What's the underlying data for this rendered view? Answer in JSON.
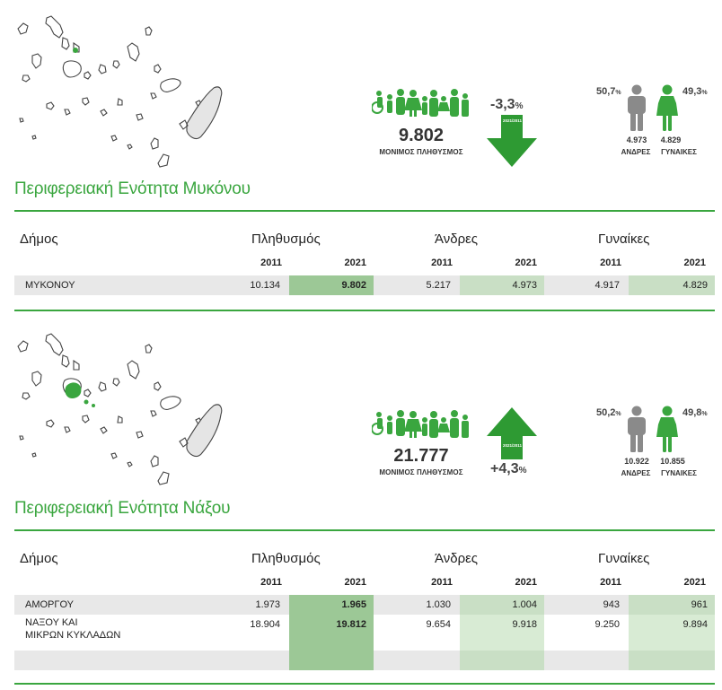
{
  "sections": [
    {
      "title": "Περιφερειακή Ενότητα Μυκόνου",
      "population": "9.802",
      "population_caption": "ΜΟΝΙΜΟΣ ΠΛΗΘΥΣΜΟΣ",
      "change": "-3,3",
      "change_unit": "%",
      "change_period": "2021/2011",
      "change_direction": "down",
      "men_pct": "50,7",
      "women_pct": "49,3",
      "pct_unit": "%",
      "men_count": "4.973",
      "women_count": "4.829",
      "men_label": "ΑΝΔΡΕΣ",
      "women_label": "ΓΥΝΑΙΚΕΣ",
      "headers": {
        "municipality": "Δήμος",
        "population": "Πληθυσμός",
        "men": "Άνδρες",
        "women": "Γυναίκες"
      },
      "years": [
        "2011",
        "2021"
      ],
      "rows": [
        {
          "name": "ΜΥΚΟΝΟΥ",
          "pop2011": "10.134",
          "pop2021": "9.802",
          "men2011": "5.217",
          "men2021": "4.973",
          "women2011": "4.917",
          "women2021": "4.829"
        }
      ]
    },
    {
      "title": "Περιφερειακή Ενότητα Νάξου",
      "population": "21.777",
      "population_caption": "ΜΟΝΙΜΟΣ ΠΛΗΘΥΣΜΟΣ",
      "change": "+4,3",
      "change_unit": "%",
      "change_period": "2021/2011",
      "change_direction": "up",
      "men_pct": "50,2",
      "women_pct": "49,8",
      "pct_unit": "%",
      "men_count": "10.922",
      "women_count": "10.855",
      "men_label": "ΑΝΔΡΕΣ",
      "women_label": "ΓΥΝΑΙΚΕΣ",
      "headers": {
        "municipality": "Δήμος",
        "population": "Πληθυσμός",
        "men": "Άνδρες",
        "women": "Γυναίκες"
      },
      "years": [
        "2011",
        "2021"
      ],
      "rows": [
        {
          "name": "ΑΜΟΡΓΟΥ",
          "pop2011": "1.973",
          "pop2021": "1.965",
          "men2011": "1.030",
          "men2021": "1.004",
          "women2011": "943",
          "women2021": "961"
        },
        {
          "name_line1": "ΝΑΞΟΥ ΚΑΙ",
          "name_line2": "ΜΙΚΡΩΝ ΚΥΚΛΑΔΩΝ",
          "pop2011": "18.904",
          "pop2021": "19.812",
          "men2011": "9.654",
          "men2021": "9.918",
          "women2011": "9.250",
          "women2021": "9.894"
        }
      ]
    }
  ],
  "colors": {
    "accent": "#3aa63f",
    "person": "#8a8a8a",
    "row": "#e8e8e8"
  },
  "icons": [
    "cyclades-map",
    "family-icon",
    "arrow-down-icon",
    "arrow-up-icon",
    "man-icon",
    "woman-icon"
  ]
}
